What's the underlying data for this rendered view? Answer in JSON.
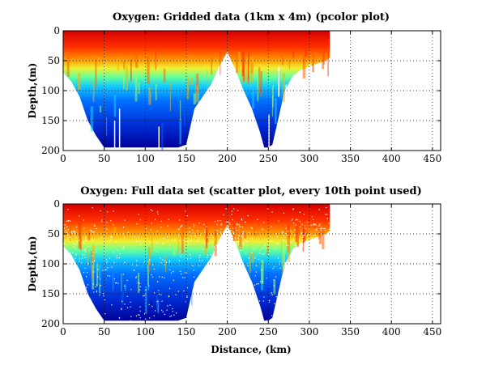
{
  "chart_data": [
    {
      "type": "heatmap",
      "title": "Oxygen: Gridded data (1km x 4m) (pcolor plot)",
      "xlabel": "",
      "ylabel": "Depth,(m)",
      "xlim": [
        0,
        460
      ],
      "ylim": [
        0,
        200
      ],
      "y_inverted": true,
      "x_ticks": [
        "0",
        "50",
        "100",
        "150",
        "200",
        "250",
        "300",
        "350",
        "400",
        "450"
      ],
      "y_ticks": [
        "0",
        "50",
        "100",
        "150",
        "200"
      ],
      "grid": true,
      "colormap": "jet",
      "variable": "oxygen",
      "data_extent_km": [
        0,
        325
      ],
      "section_depths": {
        "x": [
          0,
          10,
          20,
          30,
          40,
          50,
          60,
          70,
          80,
          90,
          100,
          110,
          120,
          130,
          140,
          150,
          155,
          160,
          170,
          180,
          190,
          200,
          210,
          220,
          230,
          240,
          245,
          250,
          255,
          260,
          265,
          270,
          280,
          290,
          300,
          310,
          320,
          325
        ],
        "max_depth_m": [
          70,
          85,
          110,
          150,
          175,
          195,
          195,
          195,
          195,
          195,
          195,
          195,
          195,
          195,
          195,
          190,
          160,
          130,
          110,
          90,
          60,
          35,
          65,
          100,
          130,
          170,
          195,
          195,
          190,
          160,
          130,
          100,
          75,
          65,
          60,
          55,
          50,
          45
        ]
      }
    },
    {
      "type": "scatter",
      "title": "Oxygen: Full data set (scatter plot, every 10th point used)",
      "xlabel": "Distance, (km)",
      "ylabel": "Depth,(m)",
      "xlim": [
        0,
        460
      ],
      "ylim": [
        0,
        200
      ],
      "y_inverted": true,
      "x_ticks": [
        "0",
        "50",
        "100",
        "150",
        "200",
        "250",
        "300",
        "350",
        "400",
        "450"
      ],
      "y_ticks": [
        "0",
        "50",
        "100",
        "150",
        "200"
      ],
      "grid": true,
      "colormap": "jet",
      "variable": "oxygen",
      "data_extent_km": [
        0,
        325
      ],
      "section_depths": {
        "x": [
          0,
          10,
          20,
          30,
          40,
          50,
          60,
          70,
          80,
          90,
          100,
          110,
          120,
          130,
          140,
          150,
          155,
          160,
          170,
          180,
          190,
          200,
          210,
          220,
          230,
          240,
          245,
          250,
          255,
          260,
          265,
          270,
          280,
          290,
          300,
          310,
          320,
          325
        ],
        "max_depth_m": [
          70,
          85,
          110,
          150,
          175,
          195,
          195,
          195,
          195,
          195,
          195,
          195,
          195,
          195,
          195,
          190,
          160,
          130,
          110,
          90,
          60,
          35,
          65,
          100,
          130,
          170,
          195,
          195,
          190,
          160,
          130,
          100,
          75,
          65,
          60,
          55,
          50,
          45
        ]
      }
    }
  ]
}
